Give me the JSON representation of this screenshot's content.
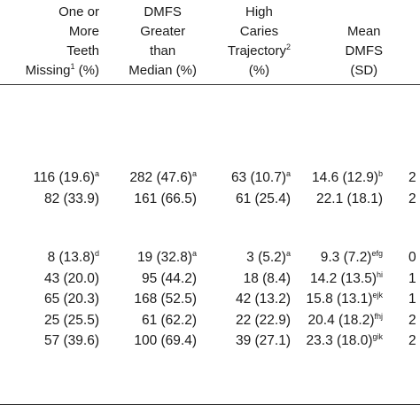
{
  "headers": [
    {
      "lines": [
        "One or",
        "More",
        "Teeth",
        "Missing"
      ],
      "sup": "1",
      "tail": " (%)"
    },
    {
      "lines": [
        "DMFS",
        "Greater",
        "than",
        "Median (%)"
      ]
    },
    {
      "lines": [
        "High",
        "Caries",
        "Trajectory"
      ],
      "sup": "2",
      "tail2": "(%)"
    },
    {
      "lines": [
        "Mean",
        "DMFS",
        "(SD)"
      ]
    }
  ],
  "group1": [
    {
      "c": [
        {
          "t": "116 (19.6)",
          "s": "a"
        },
        {
          "t": "282 (47.6)",
          "s": "a"
        },
        {
          "t": "63 (10.7)",
          "s": "a"
        },
        {
          "t": "14.6 (12.9)",
          "s": "b"
        }
      ],
      "trunc": "2"
    },
    {
      "c": [
        {
          "t": "82 (33.9)",
          "s": ""
        },
        {
          "t": "161 (66.5)",
          "s": ""
        },
        {
          "t": "61 (25.4)",
          "s": ""
        },
        {
          "t": "22.1 (18.1)",
          "s": ""
        }
      ],
      "trunc": "2"
    }
  ],
  "group2": [
    {
      "c": [
        {
          "t": "8 (13.8)",
          "s": "d"
        },
        {
          "t": "19 (32.8)",
          "s": "a"
        },
        {
          "t": "3 (5.2)",
          "s": "a"
        },
        {
          "t": "9.3 (7.2)",
          "s": "efg"
        }
      ],
      "trunc": "0"
    },
    {
      "c": [
        {
          "t": "43 (20.0)",
          "s": ""
        },
        {
          "t": "95 (44.2)",
          "s": ""
        },
        {
          "t": "18 (8.4)",
          "s": ""
        },
        {
          "t": "14.2 (13.5)",
          "s": "hi"
        }
      ],
      "trunc": "1"
    },
    {
      "c": [
        {
          "t": "65 (20.3)",
          "s": ""
        },
        {
          "t": "168 (52.5)",
          "s": ""
        },
        {
          "t": "42 (13.2)",
          "s": ""
        },
        {
          "t": "15.8 (13.1)",
          "s": "ejk"
        }
      ],
      "trunc": "1"
    },
    {
      "c": [
        {
          "t": "25 (25.5)",
          "s": ""
        },
        {
          "t": "61 (62.2)",
          "s": ""
        },
        {
          "t": "22 (22.9)",
          "s": ""
        },
        {
          "t": "20.4 (18.2)",
          "s": "fhj"
        }
      ],
      "trunc": "2"
    },
    {
      "c": [
        {
          "t": "57 (39.6)",
          "s": ""
        },
        {
          "t": "100 (69.4)",
          "s": ""
        },
        {
          "t": "39 (27.1)",
          "s": ""
        },
        {
          "t": "23.3 (18.0)",
          "s": "gik"
        }
      ],
      "trunc": "2"
    }
  ]
}
